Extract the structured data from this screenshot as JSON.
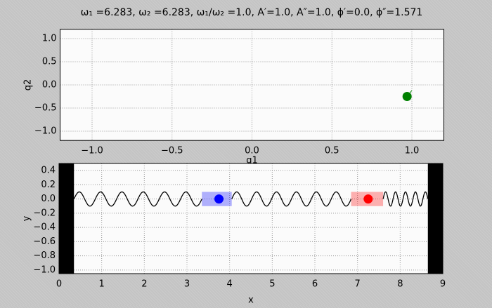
{
  "chart_data": [
    {
      "type": "scatter",
      "title": "ω₁ =6.283, ω₂ =6.283, ω₁/ω₂ =1.0, A′=1.0, A″=1.0, ϕ′=0.0, ϕ″=1.571",
      "xlabel": "q1",
      "ylabel": "q2",
      "xlim": [
        -1.2,
        1.2
      ],
      "ylim": [
        -1.2,
        1.2
      ],
      "xticks": [
        {
          "value": -1,
          "label": "−1.0"
        },
        {
          "value": -0.5,
          "label": "−0.5"
        },
        {
          "value": 0,
          "label": "0.0"
        },
        0.5,
        {
          "value": 1,
          "label": "1.0"
        }
      ],
      "yticks": [
        {
          "value": -1,
          "label": "−1.0"
        },
        {
          "value": -0.5,
          "label": "−0.5"
        },
        {
          "value": 0,
          "label": "0.0"
        },
        0.5,
        {
          "value": 1,
          "label": "1.0"
        }
      ],
      "grid": true,
      "series": [
        {
          "color": "#008000",
          "x": [
            0.97
          ],
          "values": [
            -0.25
          ]
        }
      ],
      "trail": {
        "color": "#008000",
        "x": [
          0.97,
          1.0
        ],
        "values": [
          -0.25,
          -0.12
        ]
      }
    },
    {
      "type": "springs",
      "xlabel": "x",
      "ylabel": "y",
      "xlim": [
        0,
        9
      ],
      "ylim": [
        -1.05,
        0.5
      ],
      "xticks": [
        0,
        1,
        2,
        3,
        4,
        5,
        6,
        7,
        8,
        9
      ],
      "yticks": [
        {
          "value": -1,
          "label": "−1.0"
        },
        {
          "value": -0.8,
          "label": "−0.8"
        },
        {
          "value": -0.6,
          "label": "−0.6"
        },
        {
          "value": -0.4,
          "label": "−0.4"
        },
        {
          "value": -0.2,
          "label": "−0.2"
        },
        {
          "value": 0,
          "label": "0.0"
        },
        0.2,
        0.4
      ],
      "grid": true,
      "walls": [
        [
          0,
          0.35
        ],
        [
          8.65,
          9
        ]
      ],
      "springs": [
        {
          "x": [
            0.35,
            3.35
          ],
          "coils": 6,
          "amplitude": 0.1
        },
        {
          "x": [
            4.05,
            6.85
          ],
          "coils": 6,
          "amplitude": 0.1
        },
        {
          "x": [
            7.6,
            8.65
          ],
          "coils": 4.5,
          "amplitude": 0.1
        }
      ],
      "masses": [
        {
          "color": "#0000ff",
          "x": 3.75,
          "y": 0,
          "box": [
            3.35,
            4.05
          ],
          "box_height": 0.1
        },
        {
          "color": "#ff0000",
          "x": 7.25,
          "y": 0,
          "box": [
            6.85,
            7.6
          ],
          "box_height": 0.1
        }
      ]
    }
  ]
}
